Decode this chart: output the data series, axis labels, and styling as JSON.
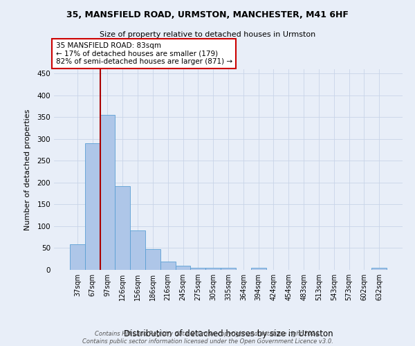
{
  "title1": "35, MANSFIELD ROAD, URMSTON, MANCHESTER, M41 6HF",
  "title2": "Size of property relative to detached houses in Urmston",
  "xlabel": "Distribution of detached houses by size in Urmston",
  "ylabel": "Number of detached properties",
  "footnote": "Contains HM Land Registry data © Crown copyright and database right 2024.\nContains public sector information licensed under the Open Government Licence v3.0.",
  "bin_labels": [
    "37sqm",
    "67sqm",
    "97sqm",
    "126sqm",
    "156sqm",
    "186sqm",
    "216sqm",
    "245sqm",
    "275sqm",
    "305sqm",
    "335sqm",
    "364sqm",
    "394sqm",
    "424sqm",
    "454sqm",
    "483sqm",
    "513sqm",
    "543sqm",
    "573sqm",
    "602sqm",
    "632sqm"
  ],
  "bar_values": [
    59,
    290,
    355,
    192,
    90,
    47,
    19,
    9,
    5,
    5,
    5,
    0,
    4,
    0,
    0,
    0,
    0,
    0,
    0,
    0,
    4
  ],
  "bar_color": "#aec6e8",
  "bar_edge_color": "#5a9fd4",
  "bar_width": 1.0,
  "ylim": [
    0,
    460
  ],
  "yticks": [
    0,
    50,
    100,
    150,
    200,
    250,
    300,
    350,
    400,
    450
  ],
  "red_line_x": 1.5,
  "annotation_text": "35 MANSFIELD ROAD: 83sqm\n← 17% of detached houses are smaller (179)\n82% of semi-detached houses are larger (871) →",
  "grid_color": "#c8d4e8",
  "background_color": "#e8eef8"
}
